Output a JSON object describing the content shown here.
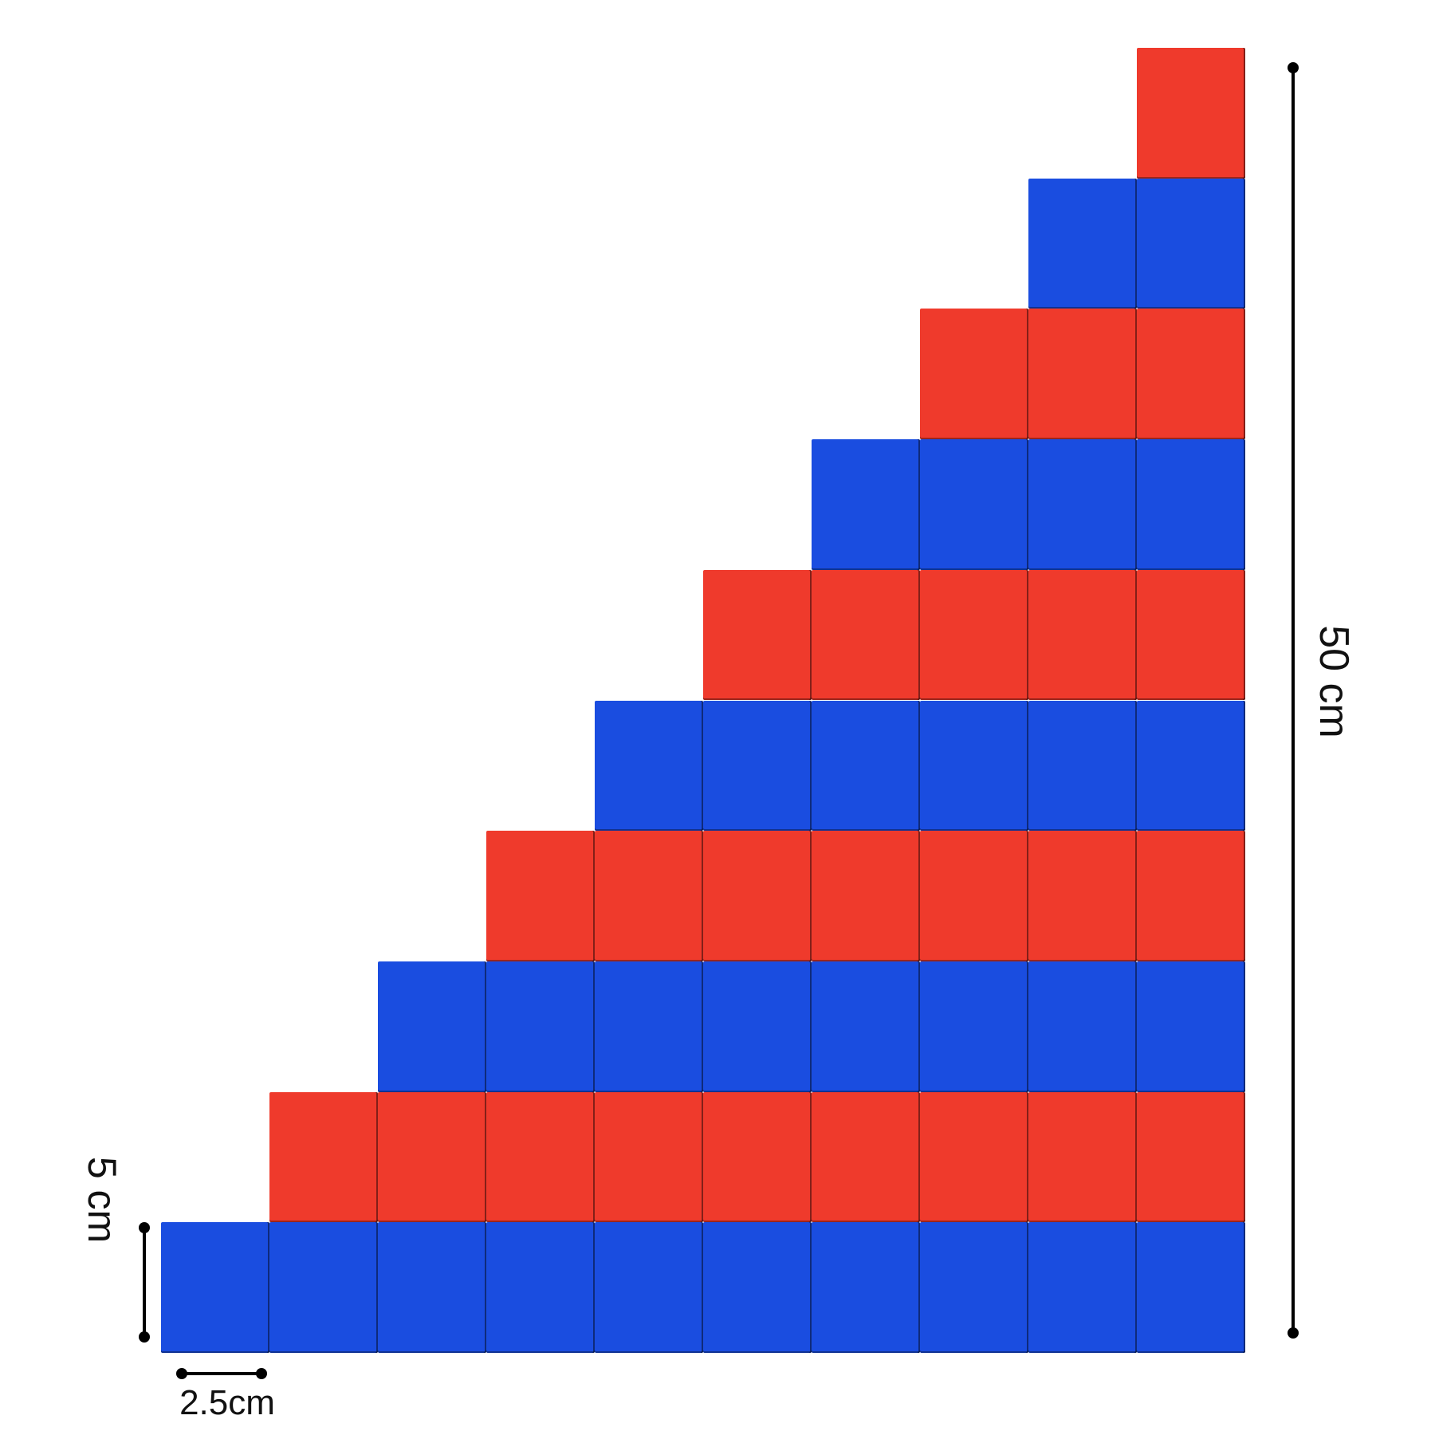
{
  "figure": {
    "rows": [
      {
        "blocks": 10,
        "color": "blue"
      },
      {
        "blocks": 9,
        "color": "red"
      },
      {
        "blocks": 8,
        "color": "blue"
      },
      {
        "blocks": 7,
        "color": "red"
      },
      {
        "blocks": 6,
        "color": "blue"
      },
      {
        "blocks": 5,
        "color": "red"
      },
      {
        "blocks": 4,
        "color": "blue"
      },
      {
        "blocks": 3,
        "color": "red"
      },
      {
        "blocks": 2,
        "color": "blue"
      },
      {
        "blocks": 1,
        "color": "red"
      }
    ],
    "colors": {
      "blue": "#1a4de0",
      "red": "#ef3a2c"
    }
  },
  "dimensions": {
    "total_height_label": "50 cm",
    "block_height_label": "5 cm",
    "block_width_label": "2.5cm"
  }
}
